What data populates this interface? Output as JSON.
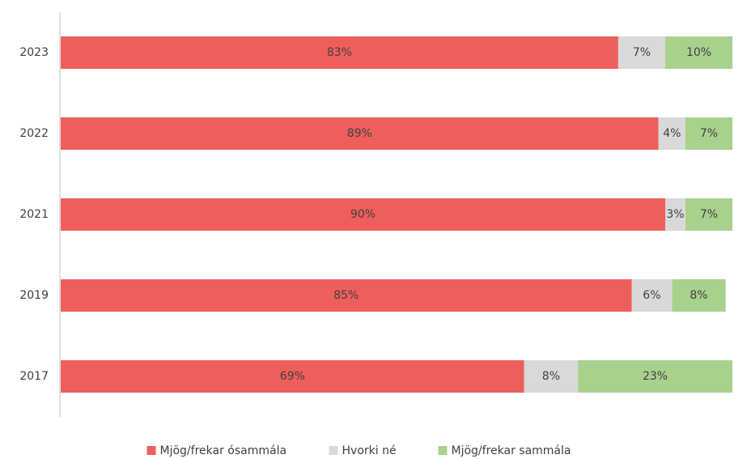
{
  "chart_data": {
    "type": "stacked_barh",
    "categories": [
      "2023",
      "2022",
      "2021",
      "2019",
      "2017"
    ],
    "xlim": [
      0,
      100
    ],
    "series": [
      {
        "name": "Mjög/frekar ósammála",
        "color": "#ee5f5b",
        "values": [
          83,
          89,
          90,
          85,
          69
        ],
        "value_labels": [
          "83%",
          "89%",
          "90%",
          "85%",
          "69%"
        ]
      },
      {
        "name": "Hvorki né",
        "color": "#d9d9d9",
        "values": [
          7,
          4,
          3,
          6,
          8
        ],
        "value_labels": [
          "7%",
          "4%",
          "3%",
          "6%",
          "8%"
        ]
      },
      {
        "name": "Mjög/frekar sammála",
        "color": "#a9d18e",
        "values": [
          10,
          7,
          7,
          8,
          23
        ],
        "value_labels": [
          "10%",
          "7%",
          "7%",
          "8%",
          "23%"
        ]
      }
    ],
    "legend": "bottom"
  }
}
